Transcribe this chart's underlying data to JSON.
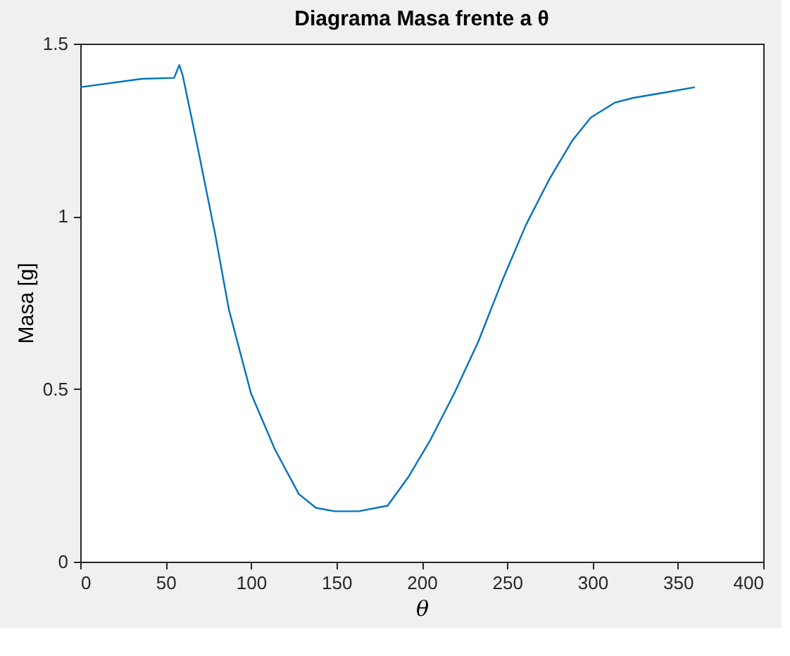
{
  "chart_data": {
    "type": "line",
    "title": "Diagrama Masa frente a θ",
    "xlabel": "θ",
    "ylabel": "Masa [g]",
    "x": [
      0,
      36,
      55,
      58,
      60,
      68,
      79,
      87,
      100,
      114,
      128,
      138,
      149,
      163,
      180,
      192,
      205,
      219,
      233,
      247,
      261,
      275,
      288,
      299,
      313,
      324,
      344,
      360
    ],
    "series": [
      {
        "color": "#0072bd",
        "values": [
          1.374,
          1.398,
          1.401,
          1.438,
          1.408,
          1.218,
          0.948,
          0.731,
          0.487,
          0.325,
          0.196,
          0.156,
          0.146,
          0.146,
          0.162,
          0.244,
          0.352,
          0.487,
          0.636,
          0.812,
          0.975,
          1.11,
          1.218,
          1.286,
          1.329,
          1.343,
          1.36,
          1.374
        ]
      }
    ],
    "xlim": [
      0,
      400
    ],
    "xticks": [
      0,
      50,
      100,
      150,
      200,
      250,
      300,
      350,
      400
    ],
    "ylim": [
      0,
      1.5
    ],
    "yticks": [
      0,
      0.5,
      1,
      1.5
    ],
    "grid": false,
    "marker": "none",
    "line_style": "solid"
  }
}
